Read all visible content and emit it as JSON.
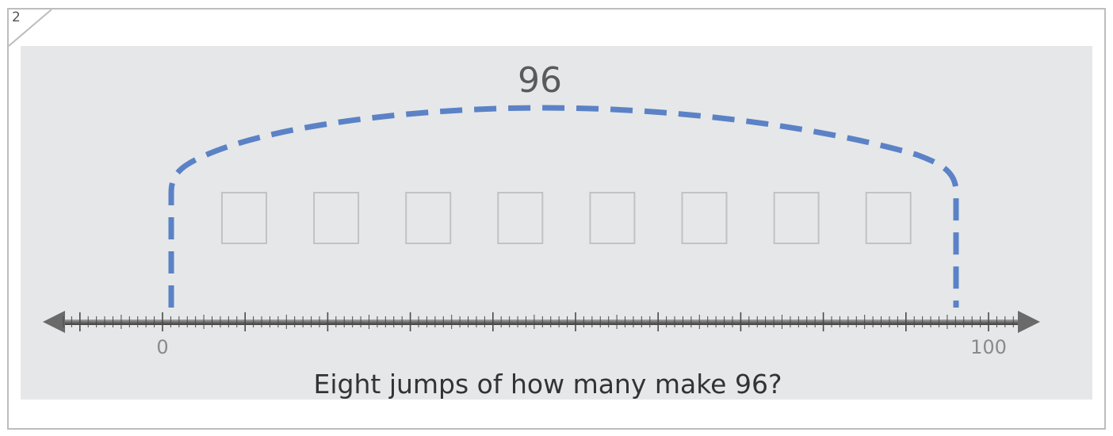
{
  "question_number": "2",
  "total_label": "96",
  "answer_box_count": 8,
  "number_line": {
    "min": 0,
    "max": 100,
    "major_step": 10,
    "minor_step": 1,
    "visible_labels": [
      "0",
      "100"
    ],
    "jump_start": 0,
    "jump_end": 96
  },
  "question_text": "Eight jumps of how many make 96?",
  "colors": {
    "arc": "#5b82c6",
    "panel": "#e6e7e9",
    "box_stroke": "#c2c2c2",
    "axis": "#6a6a6a"
  }
}
